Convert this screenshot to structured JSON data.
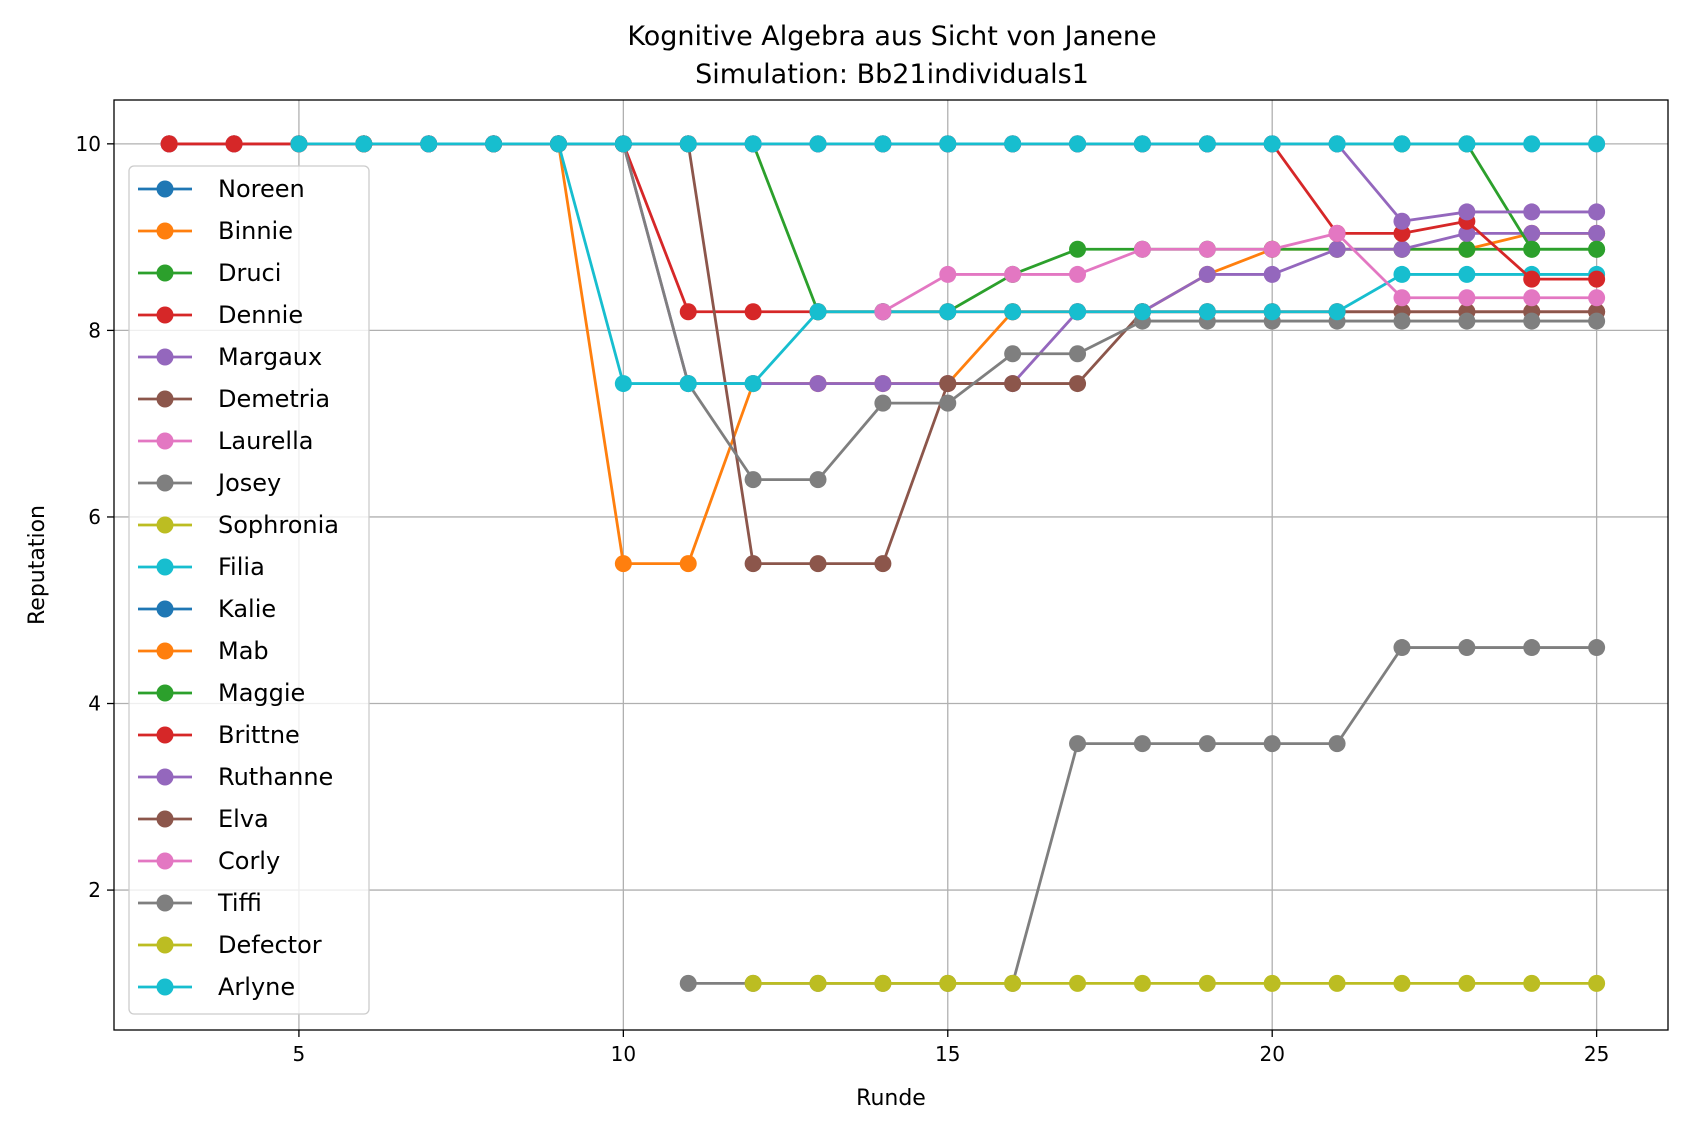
{
  "chart_data": {
    "type": "line",
    "title": "Kognitive Algebra aus Sicht von Janene",
    "subtitle": "Simulation: Bb21individuals1",
    "xlabel": "Runde",
    "ylabel": "Reputation",
    "xlim": [
      2.15,
      26.1
    ],
    "ylim": [
      0.5,
      10.47
    ],
    "xticks": [
      5,
      10,
      15,
      20,
      25
    ],
    "yticks": [
      2,
      4,
      6,
      8,
      10
    ],
    "grid": true,
    "legend_position": "upper-left",
    "series": [
      {
        "name": "Noreen",
        "color": "#1f77b4",
        "x": [],
        "y": []
      },
      {
        "name": "Binnie",
        "color": "#ff7f0e",
        "x": [
          3,
          4,
          5,
          6,
          7,
          8,
          9,
          10,
          11,
          12,
          13,
          14,
          15,
          16,
          17,
          18,
          19,
          20,
          21,
          22,
          23,
          24,
          25
        ],
        "y": [
          10,
          10,
          10,
          10,
          10,
          10,
          10,
          5.5,
          5.5,
          7.43,
          7.43,
          7.43,
          7.43,
          8.2,
          8.2,
          8.2,
          8.6,
          8.87,
          8.87,
          8.87,
          8.87,
          9.04,
          9.04
        ]
      },
      {
        "name": "Druci",
        "color": "#2ca02c",
        "x": [
          3,
          4,
          5,
          6,
          7,
          8,
          9,
          10,
          11,
          12,
          13,
          14,
          15,
          16,
          17,
          18,
          19,
          20,
          21,
          22,
          23,
          24,
          25
        ],
        "y": [
          10,
          10,
          10,
          10,
          10,
          10,
          10,
          10,
          10,
          10,
          8.2,
          8.2,
          8.2,
          8.6,
          8.87,
          8.87,
          8.87,
          8.87,
          8.87,
          8.87,
          8.87,
          8.87,
          8.87
        ]
      },
      {
        "name": "Dennie",
        "color": "#d62728",
        "x": [
          3,
          4,
          5,
          6,
          7,
          8,
          9,
          10,
          11,
          12,
          13,
          14,
          15,
          16,
          17,
          18,
          19,
          20,
          21,
          22,
          23,
          24,
          25
        ],
        "y": [
          10,
          10,
          10,
          10,
          10,
          10,
          10,
          10,
          8.2,
          8.2,
          8.2,
          8.2,
          8.2,
          8.2,
          8.2,
          8.2,
          8.2,
          8.2,
          8.2,
          8.2,
          8.2,
          8.2,
          8.2
        ]
      },
      {
        "name": "Margaux",
        "color": "#9467bd",
        "x": [
          3,
          4,
          5,
          6,
          7,
          8,
          9,
          10,
          11,
          12,
          13,
          14,
          15,
          16,
          17,
          18,
          19,
          20,
          21,
          22,
          23,
          24,
          25
        ],
        "y": [
          10,
          10,
          10,
          10,
          10,
          10,
          10,
          10,
          7.43,
          7.43,
          7.43,
          7.43,
          7.43,
          7.43,
          8.2,
          8.2,
          8.6,
          8.6,
          8.87,
          8.87,
          9.04,
          9.04,
          9.04
        ]
      },
      {
        "name": "Demetria",
        "color": "#8c564b",
        "x": [
          3,
          4,
          5,
          6,
          7,
          8,
          9,
          10,
          11,
          12,
          13,
          14,
          15,
          16,
          17,
          18,
          19,
          20,
          21,
          22,
          23,
          24,
          25
        ],
        "y": [
          10,
          10,
          10,
          10,
          10,
          10,
          10,
          10,
          10,
          5.5,
          5.5,
          5.5,
          7.43,
          7.43,
          7.43,
          8.2,
          8.2,
          8.2,
          8.2,
          8.2,
          8.2,
          8.2,
          8.2
        ]
      },
      {
        "name": "Laurella",
        "color": "#e377c2",
        "x": [
          3,
          4,
          5,
          6,
          7,
          8,
          9,
          10,
          11,
          12,
          13,
          14,
          15,
          16,
          17,
          18,
          19,
          20,
          21,
          22,
          23,
          24,
          25
        ],
        "y": [
          10,
          10,
          10,
          10,
          10,
          10,
          10,
          10,
          10,
          10,
          10,
          10,
          10,
          10,
          10,
          10,
          10,
          10,
          10,
          10,
          10,
          10,
          10
        ]
      },
      {
        "name": "Josey",
        "color": "#7f7f7f",
        "x": [
          9,
          10,
          11,
          12,
          13,
          14,
          15,
          16,
          17,
          18,
          19,
          20,
          21,
          22,
          23,
          24,
          25
        ],
        "y": [
          10,
          10,
          7.43,
          6.4,
          6.4,
          7.22,
          7.22,
          7.75,
          7.75,
          8.1,
          8.1,
          8.1,
          8.1,
          8.1,
          8.1,
          8.1,
          8.1
        ]
      },
      {
        "name": "Sophronia",
        "color": "#bcbd22",
        "x": [],
        "y": []
      },
      {
        "name": "Filia",
        "color": "#17becf",
        "x": [
          9,
          10,
          11,
          12,
          13,
          14,
          15,
          16,
          17,
          18,
          19,
          20,
          21,
          22,
          23,
          24,
          25
        ],
        "y": [
          10,
          7.43,
          7.43,
          7.43,
          8.2,
          8.2,
          8.2,
          8.2,
          8.2,
          8.2,
          8.2,
          8.2,
          8.2,
          8.6,
          8.6,
          8.6,
          8.6
        ]
      },
      {
        "name": "Kalie",
        "color": "#1f77b4",
        "x": [],
        "y": []
      },
      {
        "name": "Mab",
        "color": "#ff7f0e",
        "x": [
          6
        ],
        "y": [
          10
        ]
      },
      {
        "name": "Maggie",
        "color": "#2ca02c",
        "x": [
          14,
          15,
          16,
          17,
          18,
          19,
          20,
          21,
          22,
          23,
          24,
          25
        ],
        "y": [
          10,
          10,
          10,
          10,
          10,
          10,
          10,
          10,
          10,
          10,
          8.87,
          8.87
        ]
      },
      {
        "name": "Brittne",
        "color": "#d62728",
        "x": [
          3,
          4,
          5,
          6,
          7,
          8,
          9,
          10,
          11,
          12,
          13,
          14,
          15,
          16,
          17,
          18,
          19,
          20,
          21,
          22,
          23,
          24,
          25
        ],
        "y": [
          10,
          10,
          10,
          10,
          10,
          10,
          10,
          10,
          10,
          10,
          10,
          10,
          10,
          10,
          10,
          10,
          10,
          10,
          9.04,
          9.04,
          9.17,
          8.55,
          8.55
        ]
      },
      {
        "name": "Ruthanne",
        "color": "#9467bd",
        "x": [
          7,
          8,
          9,
          10,
          11,
          12,
          13,
          14,
          15,
          16,
          17,
          18,
          19,
          20,
          21,
          22,
          23,
          24,
          25
        ],
        "y": [
          10,
          10,
          10,
          10,
          10,
          10,
          10,
          10,
          10,
          10,
          10,
          10,
          10,
          10,
          10,
          9.17,
          9.27,
          9.27,
          9.27
        ]
      },
      {
        "name": "Elva",
        "color": "#8c564b",
        "x": [
          8,
          9,
          10,
          11
        ],
        "y": [
          10,
          10,
          10,
          10
        ]
      },
      {
        "name": "Corly",
        "color": "#e377c2",
        "x": [
          14,
          15,
          16,
          17,
          18,
          19,
          20,
          21,
          22,
          23,
          24,
          25
        ],
        "y": [
          8.2,
          8.6,
          8.6,
          8.6,
          8.87,
          8.87,
          8.87,
          9.04,
          8.35,
          8.35,
          8.35,
          8.35
        ]
      },
      {
        "name": "Tiffi",
        "color": "#7f7f7f",
        "x": [
          11,
          12,
          13,
          14,
          15,
          16,
          17,
          18,
          19,
          20,
          21,
          22,
          23,
          24,
          25
        ],
        "y": [
          1.0,
          1.0,
          1.0,
          1.0,
          1.0,
          1.0,
          3.57,
          3.57,
          3.57,
          3.57,
          3.57,
          4.6,
          4.6,
          4.6,
          4.6
        ]
      },
      {
        "name": "Defector",
        "color": "#bcbd22",
        "x": [
          12,
          13,
          14,
          15,
          16,
          17,
          18,
          19,
          20,
          21,
          22,
          23,
          24,
          25
        ],
        "y": [
          1.0,
          1.0,
          1.0,
          1.0,
          1.0,
          1.0,
          1.0,
          1.0,
          1.0,
          1.0,
          1.0,
          1.0,
          1.0,
          1.0
        ]
      },
      {
        "name": "Arlyne",
        "color": "#17becf",
        "x": [
          5,
          6,
          7,
          8,
          9,
          10,
          11,
          12,
          13,
          14,
          15,
          16,
          17,
          18,
          19,
          20,
          21,
          22,
          23,
          24,
          25
        ],
        "y": [
          10,
          10,
          10,
          10,
          10,
          10,
          10,
          10,
          10,
          10,
          10,
          10,
          10,
          10,
          10,
          10,
          10,
          10,
          10,
          10,
          10
        ]
      }
    ]
  }
}
